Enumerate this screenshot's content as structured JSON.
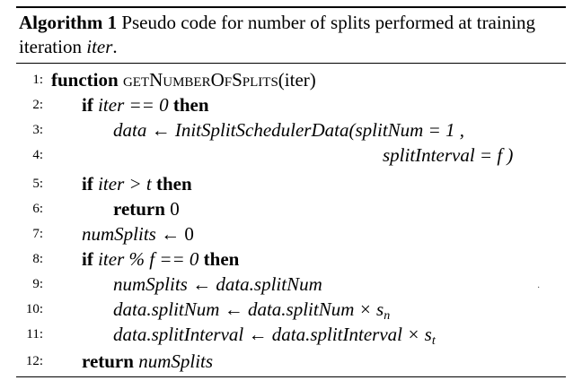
{
  "caption": {
    "label": "Algorithm 1",
    "text_before": " Pseudo code for number of splits performed at training iteration ",
    "var": "iter",
    "text_after": "."
  },
  "lines": [
    {
      "num": "1:",
      "kw1": "function",
      "func_name": "getNumberOfSplits",
      "args": "(iter)"
    },
    {
      "num": "2:",
      "kw1": "if",
      "expr": "iter == 0",
      "kw2": "then"
    },
    {
      "num": "3:",
      "lhs": "data",
      "arrow": "←",
      "call": "InitSplitSchedulerData(",
      "arg1": "splitNum = 1 ,"
    },
    {
      "num": "4:",
      "arg2": "splitInterval = f )"
    },
    {
      "num": "5:",
      "kw1": "if",
      "expr": "iter > t",
      "kw2": "then"
    },
    {
      "num": "6:",
      "kw1": "return",
      "val": "0"
    },
    {
      "num": "7:",
      "lhs": "numSplits",
      "arrow": "←",
      "rhs": "0"
    },
    {
      "num": "8:",
      "kw1": "if",
      "expr": "iter % f == 0",
      "kw2": "then"
    },
    {
      "num": "9:",
      "lhs": "numSplits",
      "arrow": "←",
      "rhs": "data.splitNum"
    },
    {
      "num": "10:",
      "lhs": "data.splitNum",
      "arrow": "←",
      "rhs": "data.splitNum ×",
      "base": "s",
      "sub": "n"
    },
    {
      "num": "11:",
      "lhs": "data.splitInterval",
      "arrow": "←",
      "rhs": "data.splitInterval ×",
      "base": "s",
      "sub": "t"
    },
    {
      "num": "12:",
      "kw1": "return",
      "val": "numSplits"
    }
  ],
  "stray_mark": "·"
}
